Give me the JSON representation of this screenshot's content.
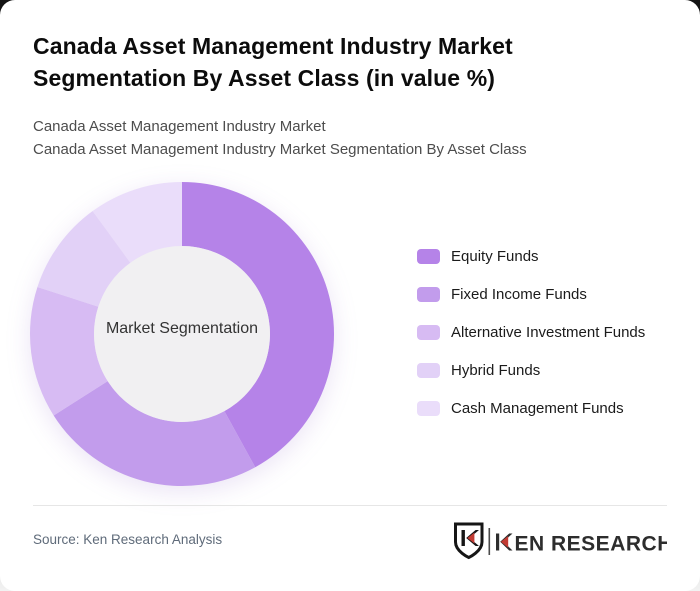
{
  "page": {
    "title": "Canada Asset Management Industry Market Segmentation By Asset Class (in value %)",
    "subtitle_line1": "Canada Asset Management Industry Market",
    "subtitle_line2": "Canada Asset Management Industry Market Segmentation By Asset Class",
    "source": "Source: Ken Research Analysis"
  },
  "logo": {
    "brand": "KEN RESEARCH",
    "badge_letter": "K",
    "text_after_k": "EN RESEARCH",
    "accent_color": "#c23b33",
    "ink_color": "#2d2d2d"
  },
  "chart_data": {
    "type": "pie",
    "variant": "donut",
    "title": "Canada Asset Management Industry Market Segmentation By Asset Class (in value %)",
    "center_label": "Market Segmentation",
    "legend_position": "right",
    "start_angle_deg": 0,
    "direction": "clockwise",
    "inner_radius_px": 88,
    "outer_radius_px": 152,
    "inner_circle_color": "#f1f0f2",
    "series": [
      {
        "name": "Equity Funds",
        "value": 42,
        "color": "#b583e8"
      },
      {
        "name": "Fixed Income Funds",
        "value": 24,
        "color": "#c29cec"
      },
      {
        "name": "Alternative Investment Funds",
        "value": 14,
        "color": "#d7bbf3"
      },
      {
        "name": "Hybrid Funds",
        "value": 10,
        "color": "#e2d1f7"
      },
      {
        "name": "Cash Management Funds",
        "value": 10,
        "color": "#eaddfa"
      }
    ]
  }
}
